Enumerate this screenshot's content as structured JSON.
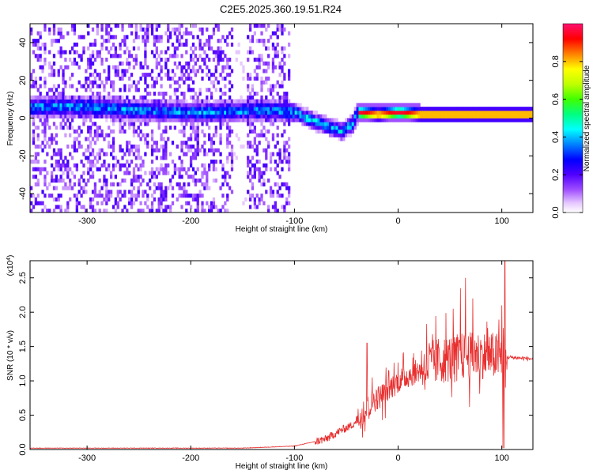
{
  "title": "C2E5.2025.360.19.51.R24",
  "chart_data": [
    {
      "type": "heatmap",
      "xlabel": "Height of straight line (km)",
      "ylabel": "Frequency (Hz)",
      "xlim": [
        -355,
        130
      ],
      "ylim": [
        -50,
        50
      ],
      "x_ticks": [
        "-300",
        "-200",
        "-100",
        "0",
        "100"
      ],
      "y_ticks": [
        "-40",
        "-20",
        "0",
        "20",
        "40"
      ],
      "colorbar": {
        "label": "Normalized spectral amplitude",
        "range": [
          0,
          1
        ],
        "ticks": [
          "0.0",
          "0.2",
          "0.4",
          "0.6",
          "0.8"
        ]
      },
      "ridge": {
        "x": [
          -300,
          -250,
          -200,
          -150,
          -120,
          -100,
          -80,
          -65,
          -55,
          -45,
          -40,
          -20,
          0,
          20,
          50,
          80,
          100,
          130
        ],
        "y": [
          5,
          3,
          2,
          3,
          3,
          2,
          -3,
          -6,
          -8,
          -4,
          2,
          1,
          2,
          1,
          1,
          1,
          1,
          1
        ]
      }
    },
    {
      "type": "line",
      "xlabel": "Height of straight line (km)",
      "ylabel": "SNR (10 * v/v)",
      "y_multiplier": "(x10",
      "y_exponent": "4",
      "y_multiplier_close": ")",
      "xlim": [
        -355,
        130
      ],
      "ylim": [
        0,
        2.75
      ],
      "x_ticks": [
        "-300",
        "-200",
        "-100",
        "0",
        "100"
      ],
      "y_ticks": [
        "0.0",
        "0.5",
        "1.0",
        "1.5",
        "2.0",
        "2.5"
      ],
      "color": "#e83030",
      "trend": {
        "x": [
          -355,
          -150,
          -100,
          -70,
          -55,
          -45,
          -35,
          -25,
          -15,
          0,
          20,
          40,
          60,
          80,
          100,
          130
        ],
        "y": [
          0.02,
          0.02,
          0.05,
          0.15,
          0.28,
          0.35,
          0.5,
          0.7,
          0.8,
          1.0,
          1.15,
          1.3,
          1.35,
          1.38,
          1.35,
          1.32
        ]
      },
      "spikes": [
        {
          "x": -30,
          "y": 1.55
        },
        {
          "x": -25,
          "y": 1.05
        },
        {
          "x": 30,
          "y": 1.55
        },
        {
          "x": 35,
          "y": 1.45
        },
        {
          "x": 60,
          "y": 2.35
        },
        {
          "x": 65,
          "y": 2.5
        },
        {
          "x": 72,
          "y": 2.2
        },
        {
          "x": 100,
          "y": 2.1
        },
        {
          "x": 103,
          "y": 2.75
        }
      ]
    }
  ]
}
